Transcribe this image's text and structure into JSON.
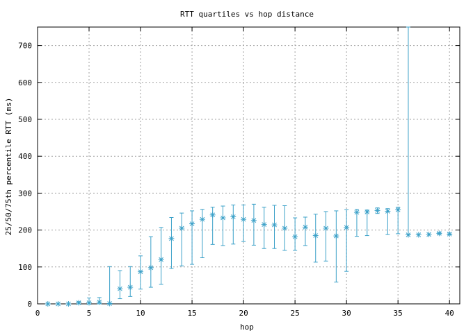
{
  "chart_data": {
    "type": "scatter",
    "title": "RTT quartiles vs hop distance",
    "xlabel": "hop",
    "ylabel": "25/50/75th percentile RTT (ms)",
    "xlim": [
      0,
      41
    ],
    "ylim": [
      0,
      750
    ],
    "xticks": [
      0,
      5,
      10,
      15,
      20,
      25,
      30,
      35,
      40
    ],
    "yticks": [
      0,
      100,
      200,
      300,
      400,
      500,
      600,
      700
    ],
    "grid": true,
    "series_color": "#3aa0c8",
    "points": [
      {
        "x": 1,
        "median": 0,
        "low": 0,
        "high": 0
      },
      {
        "x": 2,
        "median": 0,
        "low": 0,
        "high": 0
      },
      {
        "x": 3,
        "median": 0,
        "low": 0,
        "high": 0
      },
      {
        "x": 4,
        "median": 3,
        "low": 0,
        "high": 6
      },
      {
        "x": 5,
        "median": 3,
        "low": 0,
        "high": 16
      },
      {
        "x": 6,
        "median": 5,
        "low": 0,
        "high": 17
      },
      {
        "x": 7,
        "median": 1,
        "low": 0,
        "high": 101
      },
      {
        "x": 8,
        "median": 41,
        "low": 14,
        "high": 90
      },
      {
        "x": 9,
        "median": 45,
        "low": 20,
        "high": 101
      },
      {
        "x": 10,
        "median": 87,
        "low": 40,
        "high": 130
      },
      {
        "x": 11,
        "median": 98,
        "low": 45,
        "high": 182
      },
      {
        "x": 12,
        "median": 120,
        "low": 53,
        "high": 207
      },
      {
        "x": 13,
        "median": 177,
        "low": 96,
        "high": 234
      },
      {
        "x": 14,
        "median": 205,
        "low": 103,
        "high": 246
      },
      {
        "x": 15,
        "median": 217,
        "low": 107,
        "high": 252
      },
      {
        "x": 16,
        "median": 229,
        "low": 125,
        "high": 256
      },
      {
        "x": 17,
        "median": 241,
        "low": 161,
        "high": 262
      },
      {
        "x": 18,
        "median": 233,
        "low": 158,
        "high": 265
      },
      {
        "x": 19,
        "median": 236,
        "low": 162,
        "high": 268
      },
      {
        "x": 20,
        "median": 229,
        "low": 169,
        "high": 268
      },
      {
        "x": 21,
        "median": 226,
        "low": 159,
        "high": 270
      },
      {
        "x": 22,
        "median": 215,
        "low": 150,
        "high": 262
      },
      {
        "x": 23,
        "median": 214,
        "low": 150,
        "high": 267
      },
      {
        "x": 24,
        "median": 205,
        "low": 145,
        "high": 266
      },
      {
        "x": 25,
        "median": 182,
        "low": 145,
        "high": 233
      },
      {
        "x": 26,
        "median": 208,
        "low": 158,
        "high": 235
      },
      {
        "x": 27,
        "median": 185,
        "low": 113,
        "high": 243
      },
      {
        "x": 28,
        "median": 205,
        "low": 116,
        "high": 250
      },
      {
        "x": 29,
        "median": 184,
        "low": 59,
        "high": 252
      },
      {
        "x": 30,
        "median": 207,
        "low": 88,
        "high": 255
      },
      {
        "x": 31,
        "median": 248,
        "low": 183,
        "high": 256
      },
      {
        "x": 32,
        "median": 249,
        "low": 185,
        "high": 254
      },
      {
        "x": 33,
        "median": 253,
        "low": 245,
        "high": 260
      },
      {
        "x": 34,
        "median": 251,
        "low": 188,
        "high": 258
      },
      {
        "x": 35,
        "median": 255,
        "low": 190,
        "high": 262
      },
      {
        "x": 36,
        "median": 187,
        "low": 187,
        "high": 750
      },
      {
        "x": 37,
        "median": 187,
        "low": 187,
        "high": 187
      },
      {
        "x": 38,
        "median": 188,
        "low": 188,
        "high": 188
      },
      {
        "x": 39,
        "median": 191,
        "low": 188,
        "high": 193
      },
      {
        "x": 40,
        "median": 189,
        "low": 188,
        "high": 192
      }
    ]
  }
}
